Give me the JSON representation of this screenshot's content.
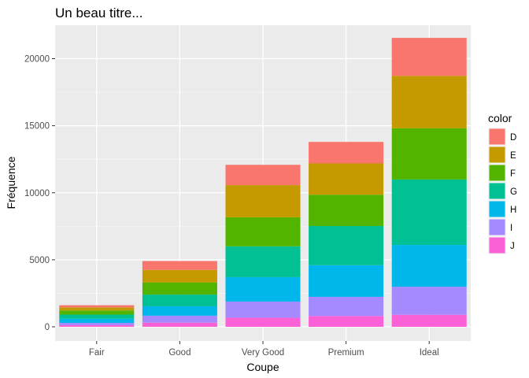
{
  "chart_data": {
    "type": "bar",
    "stacked": true,
    "title": "Un beau titre...",
    "xlabel": "Coupe",
    "ylabel": "Fréquence",
    "categories": [
      "Fair",
      "Good",
      "Very Good",
      "Premium",
      "Ideal"
    ],
    "ylim": [
      0,
      22500
    ],
    "yticks": [
      0,
      5000,
      10000,
      15000,
      20000
    ],
    "yticklabels": [
      "0",
      "5000",
      "10000",
      "15000",
      "20000"
    ],
    "grid": true,
    "legend": {
      "title": "color",
      "position": "right"
    },
    "series": [
      {
        "name": "D",
        "color": "#F8766D",
        "values": [
          163,
          662,
          1513,
          1603,
          2834
        ]
      },
      {
        "name": "E",
        "color": "#C49A00",
        "values": [
          224,
          933,
          2400,
          2337,
          3903
        ]
      },
      {
        "name": "F",
        "color": "#53B400",
        "values": [
          312,
          909,
          2164,
          2331,
          3826
        ]
      },
      {
        "name": "G",
        "color": "#00C094",
        "values": [
          314,
          871,
          2299,
          2924,
          4884
        ]
      },
      {
        "name": "H",
        "color": "#00B6EB",
        "values": [
          303,
          702,
          1824,
          2360,
          3115
        ]
      },
      {
        "name": "I",
        "color": "#A58AFF",
        "values": [
          175,
          522,
          1204,
          1428,
          2093
        ]
      },
      {
        "name": "J",
        "color": "#FB61D7",
        "values": [
          119,
          307,
          678,
          808,
          896
        ]
      }
    ]
  }
}
